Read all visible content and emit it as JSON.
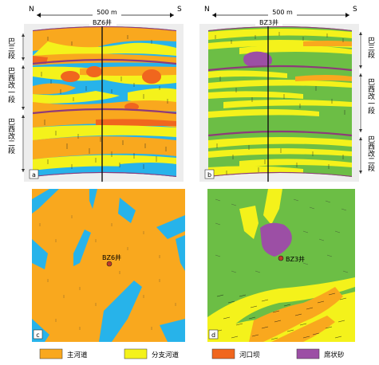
{
  "panel_a": {
    "north": "N",
    "south": "S",
    "scale": "500 m",
    "well": "BZ6井",
    "letter": "a",
    "units": [
      "巴三段",
      "巴西改一段",
      "巴西改二段"
    ]
  },
  "panel_b": {
    "north": "N",
    "south": "S",
    "scale": "500 m",
    "well": "BZ3井",
    "letter": "b",
    "units": [
      "巴三段",
      "巴西改一段",
      "巴西改二段"
    ]
  },
  "panel_c": {
    "well": "BZ6井",
    "letter": "c"
  },
  "panel_d": {
    "well": "BZ3井",
    "letter": "d"
  },
  "legend": [
    {
      "label": "主河道",
      "color": "#F9A81E"
    },
    {
      "label": "分支河道",
      "color": "#F4F21B"
    },
    {
      "label": "河口坝",
      "color": "#F0661E"
    },
    {
      "label": "席状砂",
      "color": "#9C4FA5"
    }
  ],
  "colors": {
    "main_channel": "#F9A81E",
    "branch_channel": "#F4F21B",
    "mouth_bar": "#F0661E",
    "sheet_sand": "#9C4FA5",
    "interchannel_blue": "#27B3EA",
    "interchannel_green": "#6CBE45",
    "boundary": "#8E3A7A"
  }
}
